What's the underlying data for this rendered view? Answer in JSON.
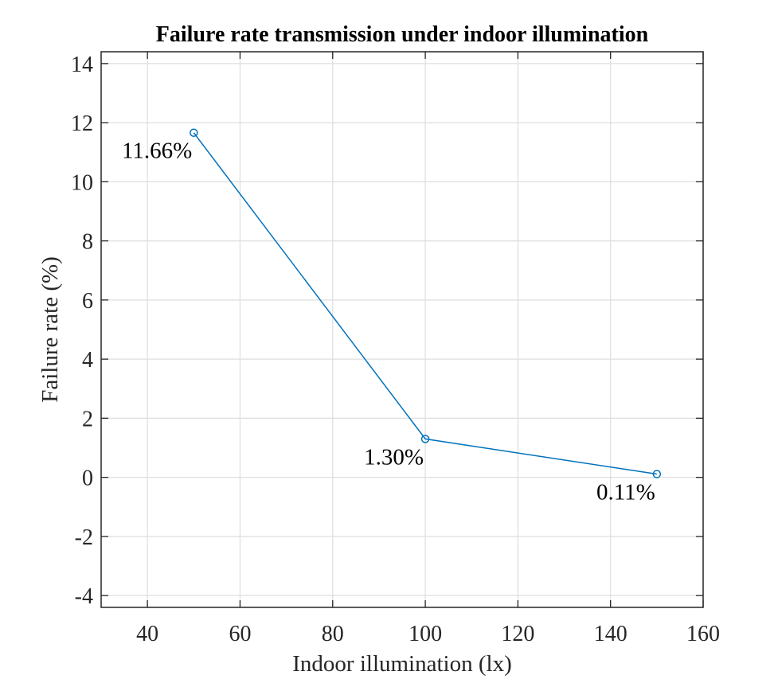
{
  "chart_data": {
    "type": "line",
    "title": "Failure rate transmission under indoor illumination",
    "xlabel": "Indoor illumination (lx)",
    "ylabel": "Failure rate (%)",
    "xlim": [
      30,
      160
    ],
    "ylim": [
      -4.4,
      14.4
    ],
    "xticks": [
      40,
      60,
      80,
      100,
      120,
      140,
      160
    ],
    "yticks": [
      -4,
      -2,
      0,
      2,
      4,
      6,
      8,
      10,
      12,
      14
    ],
    "grid": true,
    "series": [
      {
        "name": "Failure rate",
        "color": "#0072BD",
        "marker": "circle",
        "x": [
          50,
          100,
          150
        ],
        "y": [
          11.66,
          1.3,
          0.11
        ],
        "labels": [
          "11.66%",
          "1.30%",
          "0.11%"
        ]
      }
    ]
  }
}
